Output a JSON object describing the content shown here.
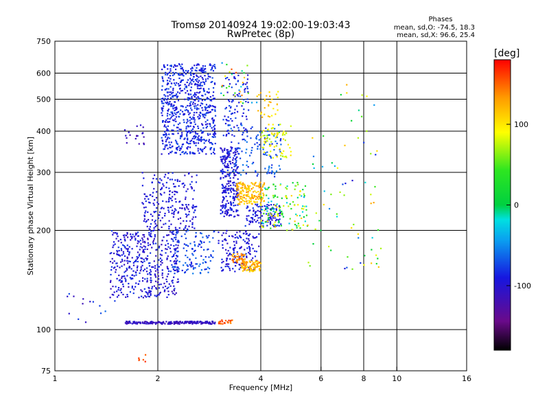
{
  "chart_data": {
    "type": "scatter",
    "title": "Tromsø 20140924 19:02:00-19:03:43",
    "subtitle": "RwPretec (8p)",
    "xlabel": "Frequency [MHz]",
    "ylabel": "Stationary phase Virtual Height [km]",
    "x_scale": "log",
    "y_scale": "log",
    "xlim": [
      1,
      16
    ],
    "ylim": [
      75,
      750
    ],
    "x_ticks": [
      1,
      2,
      4,
      6,
      8,
      10,
      16
    ],
    "y_ticks": [
      75,
      100,
      200,
      300,
      400,
      500,
      600,
      750
    ],
    "grid": true,
    "stats": {
      "heading": "Phases",
      "line_o": "mean, sd,O: -74.5, 18.3",
      "line_x": "mean, sd,X:  96.6, 25.4"
    },
    "colorbar": {
      "label": "[deg]",
      "range": [
        -180,
        180
      ],
      "ticks": [
        100,
        0,
        -100
      ]
    },
    "clusters": [
      {
        "x": [
          2.05,
          2.95
        ],
        "y": [
          340,
          640
        ],
        "n": 700,
        "phase": [
          -100,
          -70
        ]
      },
      {
        "x": [
          3.1,
          3.7
        ],
        "y": [
          385,
          600
        ],
        "n": 90,
        "phase": [
          -100,
          -70
        ]
      },
      {
        "x": [
          3.05,
          3.45
        ],
        "y": [
          220,
          360
        ],
        "n": 260,
        "phase": [
          -110,
          -80
        ]
      },
      {
        "x": [
          1.8,
          2.6
        ],
        "y": [
          200,
          300
        ],
        "n": 220,
        "phase": [
          -110,
          -80
        ]
      },
      {
        "x": [
          1.45,
          2.3
        ],
        "y": [
          125,
          200
        ],
        "n": 450,
        "phase": [
          -115,
          -75
        ]
      },
      {
        "x": [
          2.2,
          2.95
        ],
        "y": [
          148,
          200
        ],
        "n": 120,
        "phase": [
          -90,
          -55
        ]
      },
      {
        "x": [
          3.0,
          3.95
        ],
        "y": [
          150,
          200
        ],
        "n": 150,
        "phase": [
          -110,
          -80
        ]
      },
      {
        "x": [
          3.5,
          4.0
        ],
        "y": [
          150,
          162
        ],
        "n": 90,
        "phase": [
          100,
          150
        ]
      },
      {
        "x": [
          3.3,
          3.6
        ],
        "y": [
          160,
          170
        ],
        "n": 40,
        "phase": [
          120,
          160
        ]
      },
      {
        "x": [
          3.4,
          4.1
        ],
        "y": [
          240,
          280
        ],
        "n": 160,
        "phase": [
          100,
          140
        ]
      },
      {
        "x": [
          3.6,
          4.6
        ],
        "y": [
          205,
          240
        ],
        "n": 120,
        "phase": [
          -110,
          -75
        ]
      },
      {
        "x": [
          4.0,
          5.5
        ],
        "y": [
          200,
          280
        ],
        "n": 140,
        "phase": [
          -40,
          120
        ]
      },
      {
        "x": [
          3.2,
          4.6
        ],
        "y": [
          290,
          420
        ],
        "n": 130,
        "phase": [
          -90,
          -50
        ]
      },
      {
        "x": [
          4.0,
          4.9
        ],
        "y": [
          330,
          420
        ],
        "n": 70,
        "phase": [
          60,
          110
        ]
      },
      {
        "x": [
          3.9,
          4.5
        ],
        "y": [
          440,
          530
        ],
        "n": 30,
        "phase": [
          90,
          130
        ]
      },
      {
        "x": [
          1.6,
          1.85
        ],
        "y": [
          360,
          420
        ],
        "n": 20,
        "phase": [
          -130,
          -100
        ]
      },
      {
        "x": [
          5.5,
          9.0
        ],
        "y": [
          150,
          560
        ],
        "n": 70,
        "phase": [
          -100,
          130
        ]
      },
      {
        "x": [
          1.05,
          1.5
        ],
        "y": [
          105,
          130
        ],
        "n": 15,
        "phase": [
          -120,
          -60
        ]
      },
      {
        "x": [
          1.6,
          2.95
        ],
        "y": [
          104,
          106
        ],
        "n": 200,
        "phase": [
          -120,
          -100
        ]
      },
      {
        "x": [
          3.0,
          3.3
        ],
        "y": [
          104,
          107
        ],
        "n": 25,
        "phase": [
          140,
          170
        ]
      },
      {
        "x": [
          3.05,
          3.9
        ],
        "y": [
          480,
          660
        ],
        "n": 30,
        "phase": [
          -80,
          170
        ]
      },
      {
        "x": [
          1.75,
          1.9
        ],
        "y": [
          80,
          84
        ],
        "n": 6,
        "phase": [
          150,
          170
        ]
      }
    ]
  }
}
